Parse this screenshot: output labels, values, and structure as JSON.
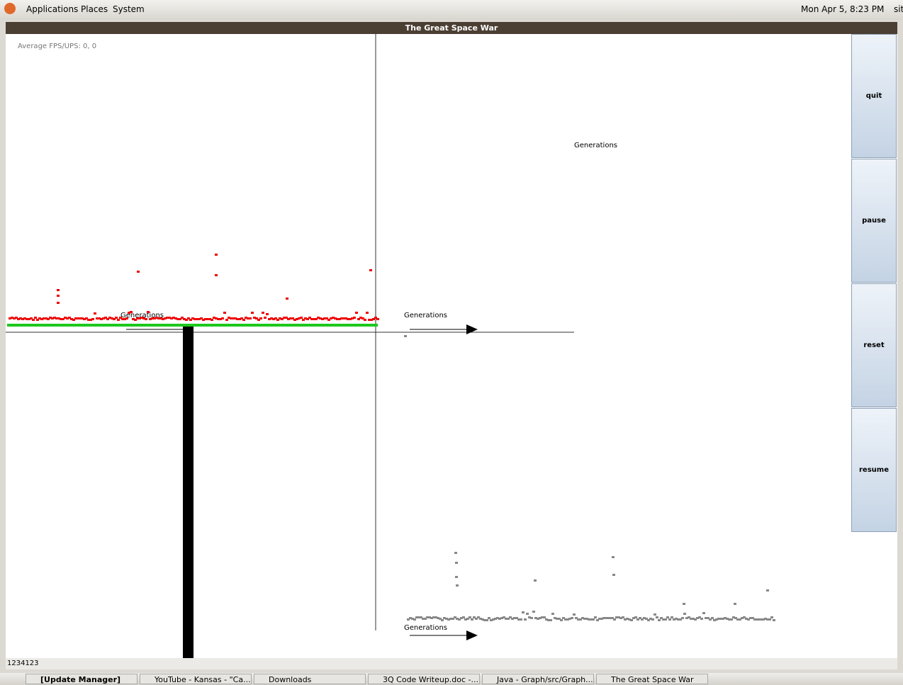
{
  "top_panel": {
    "menus": [
      "Applications",
      "Places",
      "System"
    ],
    "clock": "Mon Apr 5, 8:23 PM",
    "user": "sit"
  },
  "window": {
    "title": "The Great Space War",
    "fps_label": "Average FPS/UPS: 0, 0",
    "graph_labels": [
      "Generations",
      "Generations",
      "Generations",
      "Generations"
    ],
    "buttons": [
      "quit",
      "pause",
      "reset",
      "resume"
    ],
    "status": "1234123"
  },
  "taskbar": {
    "items": [
      "[Update Manager]",
      "YouTube - Kansas - \"Ca...",
      "Downloads",
      "3Q Code Writeup.doc -...",
      "Java - Graph/src/Graph...",
      "The Great Space War"
    ]
  }
}
